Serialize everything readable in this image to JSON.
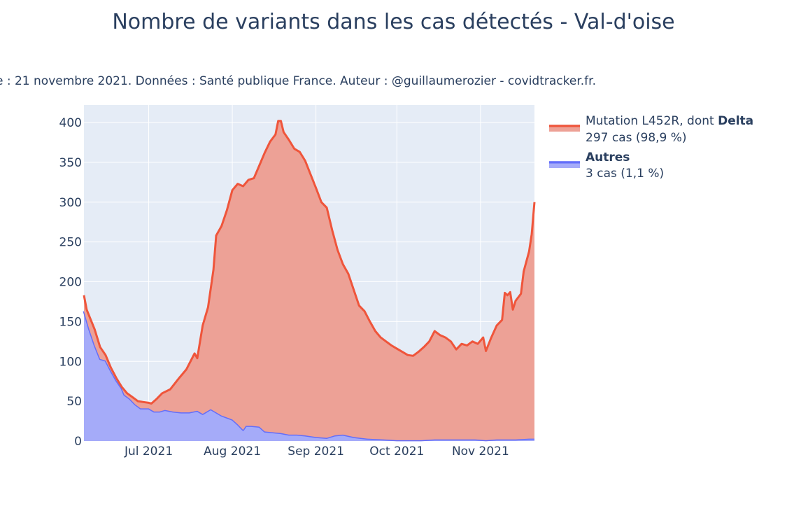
{
  "chart_data": {
    "type": "area",
    "title": "Nombre de variants dans les cas détectés - Val-d'oise",
    "subtitle": "e : 21 novembre 2021. Données : Santé publique France. Auteur : @guillaumerozier - covidtracker.fr.",
    "xlabel": "",
    "ylabel": "",
    "x_range": [
      "2021-06-07",
      "2021-11-21"
    ],
    "ylim": [
      0,
      422
    ],
    "y_ticks": [
      0,
      50,
      100,
      150,
      200,
      250,
      300,
      350,
      400
    ],
    "x_ticks": [
      {
        "date": "2021-07-01",
        "label": "Jul 2021"
      },
      {
        "date": "2021-08-01",
        "label": "Aug 2021"
      },
      {
        "date": "2021-09-01",
        "label": "Sep 2021"
      },
      {
        "date": "2021-10-01",
        "label": "Oct 2021"
      },
      {
        "date": "2021-11-01",
        "label": "Nov 2021"
      }
    ],
    "grid": true,
    "stacked": true,
    "legend_position": "right",
    "series": [
      {
        "name": "Autres",
        "legend_bold": "Autres",
        "legend_detail": "3 cas (1,1 %)",
        "line_color": "#636efa",
        "fill_color": "#a5abf9",
        "points": [
          [
            "2021-06-07",
            163
          ],
          [
            "2021-06-09",
            140
          ],
          [
            "2021-06-11",
            120
          ],
          [
            "2021-06-13",
            103
          ],
          [
            "2021-06-15",
            101
          ],
          [
            "2021-06-17",
            88
          ],
          [
            "2021-06-19",
            76
          ],
          [
            "2021-06-21",
            66
          ],
          [
            "2021-06-22",
            58
          ],
          [
            "2021-06-24",
            53
          ],
          [
            "2021-06-26",
            46
          ],
          [
            "2021-06-28",
            41
          ],
          [
            "2021-07-01",
            41
          ],
          [
            "2021-07-03",
            37
          ],
          [
            "2021-07-05",
            37
          ],
          [
            "2021-07-07",
            39
          ],
          [
            "2021-07-10",
            37
          ],
          [
            "2021-07-13",
            36
          ],
          [
            "2021-07-16",
            36
          ],
          [
            "2021-07-19",
            38
          ],
          [
            "2021-07-21",
            34
          ],
          [
            "2021-07-24",
            40
          ],
          [
            "2021-07-26",
            36
          ],
          [
            "2021-07-28",
            32
          ],
          [
            "2021-08-01",
            27
          ],
          [
            "2021-08-03",
            21
          ],
          [
            "2021-08-05",
            14
          ],
          [
            "2021-08-06",
            19
          ],
          [
            "2021-08-08",
            19
          ],
          [
            "2021-08-11",
            18
          ],
          [
            "2021-08-13",
            12
          ],
          [
            "2021-08-16",
            11
          ],
          [
            "2021-08-19",
            10
          ],
          [
            "2021-08-22",
            8
          ],
          [
            "2021-08-25",
            8
          ],
          [
            "2021-08-28",
            7
          ],
          [
            "2021-09-01",
            5
          ],
          [
            "2021-09-05",
            4
          ],
          [
            "2021-09-08",
            7
          ],
          [
            "2021-09-11",
            8
          ],
          [
            "2021-09-15",
            5
          ],
          [
            "2021-09-20",
            3
          ],
          [
            "2021-09-26",
            2
          ],
          [
            "2021-10-01",
            1
          ],
          [
            "2021-10-10",
            1
          ],
          [
            "2021-10-15",
            2
          ],
          [
            "2021-10-20",
            2
          ],
          [
            "2021-10-25",
            2
          ],
          [
            "2021-10-30",
            2
          ],
          [
            "2021-11-03",
            1
          ],
          [
            "2021-11-07",
            2
          ],
          [
            "2021-11-10",
            2
          ],
          [
            "2021-11-14",
            2
          ],
          [
            "2021-11-19",
            3
          ],
          [
            "2021-11-21",
            3
          ]
        ]
      },
      {
        "name": "Mutation L452R, dont Delta",
        "legend_prefix": "Mutation L452R, dont ",
        "legend_bold": "Delta",
        "legend_detail": "297 cas (98,9 %)",
        "line_color": "#ef553b",
        "fill_color": "#eda196",
        "points": [
          [
            "2021-06-07",
            183
          ],
          [
            "2021-06-08",
            165
          ],
          [
            "2021-06-11",
            140
          ],
          [
            "2021-06-13",
            118
          ],
          [
            "2021-06-15",
            108
          ],
          [
            "2021-06-17",
            92
          ],
          [
            "2021-06-19",
            79
          ],
          [
            "2021-06-21",
            68
          ],
          [
            "2021-06-23",
            60
          ],
          [
            "2021-06-25",
            55
          ],
          [
            "2021-06-27",
            50
          ],
          [
            "2021-06-29",
            49
          ],
          [
            "2021-07-01",
            48
          ],
          [
            "2021-07-02",
            47
          ],
          [
            "2021-07-04",
            53
          ],
          [
            "2021-07-06",
            60
          ],
          [
            "2021-07-09",
            65
          ],
          [
            "2021-07-12",
            78
          ],
          [
            "2021-07-15",
            90
          ],
          [
            "2021-07-18",
            110
          ],
          [
            "2021-07-19",
            104
          ],
          [
            "2021-07-21",
            145
          ],
          [
            "2021-07-23",
            168
          ],
          [
            "2021-07-25",
            215
          ],
          [
            "2021-07-26",
            258
          ],
          [
            "2021-07-28",
            270
          ],
          [
            "2021-07-30",
            290
          ],
          [
            "2021-08-01",
            315
          ],
          [
            "2021-08-03",
            323
          ],
          [
            "2021-08-05",
            320
          ],
          [
            "2021-08-07",
            328
          ],
          [
            "2021-08-09",
            330
          ],
          [
            "2021-08-11",
            346
          ],
          [
            "2021-08-13",
            362
          ],
          [
            "2021-08-15",
            376
          ],
          [
            "2021-08-17",
            385
          ],
          [
            "2021-08-18",
            402
          ],
          [
            "2021-08-19",
            402
          ],
          [
            "2021-08-20",
            388
          ],
          [
            "2021-08-22",
            378
          ],
          [
            "2021-08-24",
            367
          ],
          [
            "2021-08-26",
            363
          ],
          [
            "2021-08-28",
            352
          ],
          [
            "2021-08-30",
            335
          ],
          [
            "2021-09-01",
            318
          ],
          [
            "2021-09-03",
            300
          ],
          [
            "2021-09-05",
            293
          ],
          [
            "2021-09-07",
            265
          ],
          [
            "2021-09-09",
            240
          ],
          [
            "2021-09-11",
            222
          ],
          [
            "2021-09-13",
            210
          ],
          [
            "2021-09-15",
            190
          ],
          [
            "2021-09-17",
            170
          ],
          [
            "2021-09-19",
            163
          ],
          [
            "2021-09-21",
            150
          ],
          [
            "2021-09-23",
            138
          ],
          [
            "2021-09-25",
            130
          ],
          [
            "2021-09-27",
            125
          ],
          [
            "2021-09-29",
            120
          ],
          [
            "2021-10-01",
            116
          ],
          [
            "2021-10-03",
            112
          ],
          [
            "2021-10-05",
            108
          ],
          [
            "2021-10-07",
            107
          ],
          [
            "2021-10-09",
            112
          ],
          [
            "2021-10-11",
            118
          ],
          [
            "2021-10-13",
            125
          ],
          [
            "2021-10-15",
            138
          ],
          [
            "2021-10-17",
            133
          ],
          [
            "2021-10-19",
            130
          ],
          [
            "2021-10-21",
            125
          ],
          [
            "2021-10-23",
            115
          ],
          [
            "2021-10-25",
            122
          ],
          [
            "2021-10-27",
            120
          ],
          [
            "2021-10-29",
            125
          ],
          [
            "2021-10-31",
            122
          ],
          [
            "2021-11-02",
            130
          ],
          [
            "2021-11-03",
            113
          ],
          [
            "2021-11-05",
            130
          ],
          [
            "2021-11-07",
            145
          ],
          [
            "2021-11-09",
            152
          ],
          [
            "2021-11-10",
            186
          ],
          [
            "2021-11-11",
            183
          ],
          [
            "2021-11-12",
            187
          ],
          [
            "2021-11-13",
            165
          ],
          [
            "2021-11-14",
            176
          ],
          [
            "2021-11-16",
            185
          ],
          [
            "2021-11-17",
            213
          ],
          [
            "2021-11-19",
            238
          ],
          [
            "2021-11-20",
            260
          ],
          [
            "2021-11-21",
            300
          ]
        ]
      }
    ]
  }
}
